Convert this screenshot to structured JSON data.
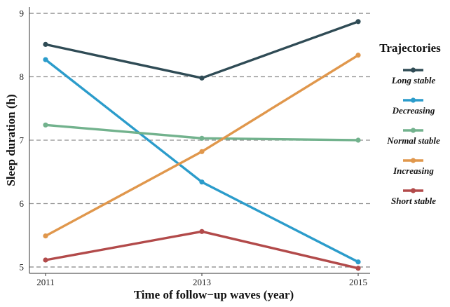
{
  "chart_data": {
    "type": "line",
    "title": "",
    "xlabel": "Time of follow−up waves (year)",
    "ylabel": "Sleep duration (h)",
    "categories": [
      "2011",
      "2013",
      "2015"
    ],
    "ylim": [
      4.9,
      9.1
    ],
    "yticks": [
      "5",
      "6",
      "7",
      "8",
      "9"
    ],
    "grid": "horizontal dashed",
    "legend_title": "Trajectories",
    "legend_position": "right",
    "series": [
      {
        "name": "Long stable",
        "color": "#2f4b55",
        "values": [
          8.51,
          7.98,
          8.87
        ]
      },
      {
        "name": "Decreasing",
        "color": "#2b9ccb",
        "values": [
          8.27,
          6.34,
          5.08
        ]
      },
      {
        "name": "Normal stable",
        "color": "#72b28d",
        "values": [
          7.24,
          7.03,
          7.0
        ]
      },
      {
        "name": "Increasing",
        "color": "#e0974c",
        "values": [
          5.49,
          6.82,
          8.34
        ]
      },
      {
        "name": "Short stable",
        "color": "#b24a4a",
        "values": [
          5.11,
          5.56,
          4.98
        ]
      }
    ]
  }
}
